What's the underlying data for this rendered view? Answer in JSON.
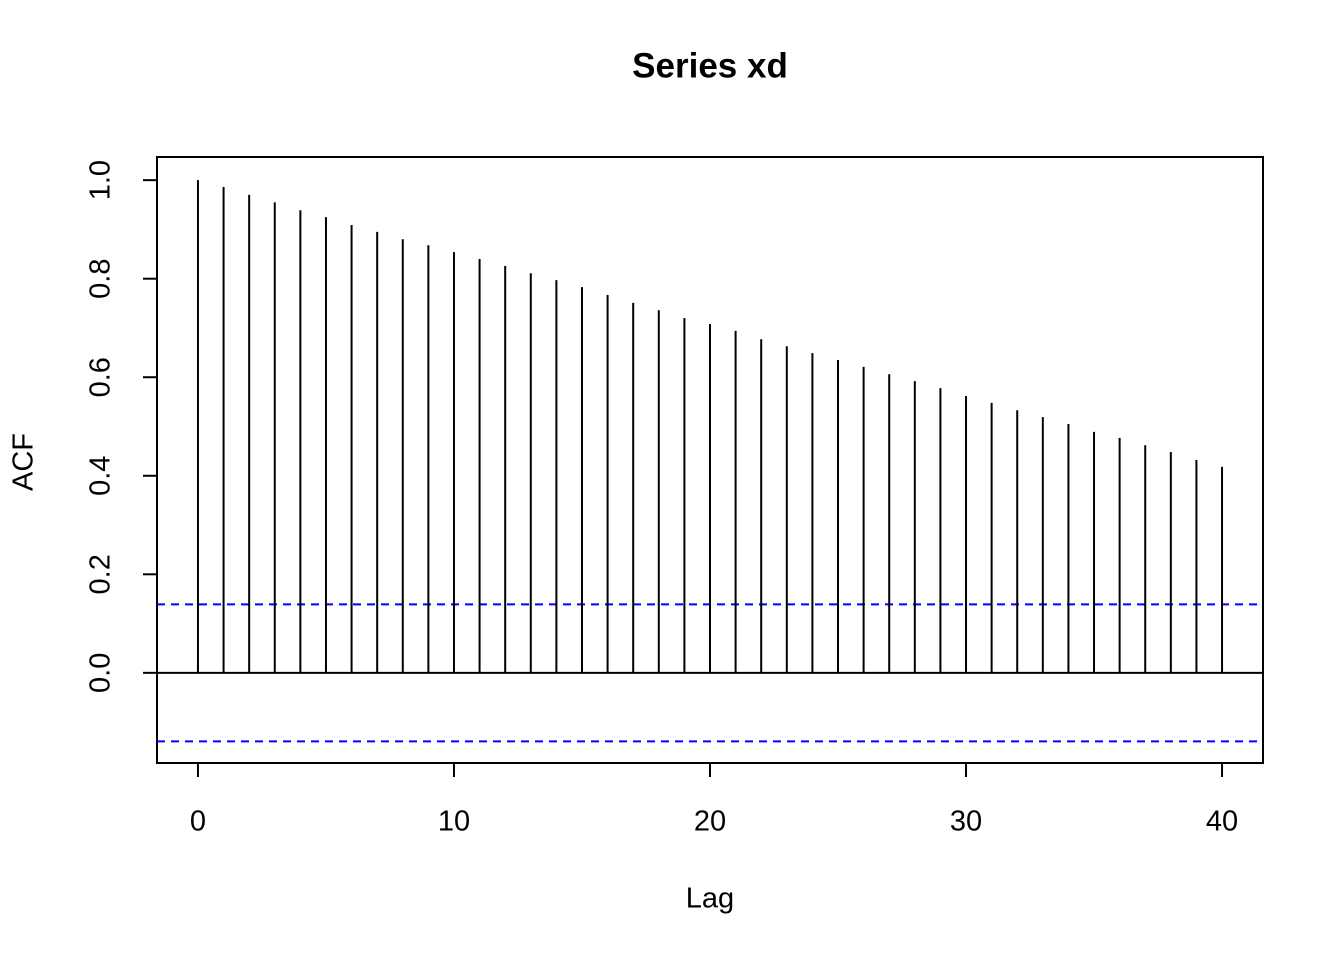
{
  "chart_data": {
    "type": "stem",
    "title": "Series  xd",
    "xlabel": "Lag",
    "ylabel": "ACF",
    "x": [
      0,
      1,
      2,
      3,
      4,
      5,
      6,
      7,
      8,
      9,
      10,
      11,
      12,
      13,
      14,
      15,
      16,
      17,
      18,
      19,
      20,
      21,
      22,
      23,
      24,
      25,
      26,
      27,
      28,
      29,
      30,
      31,
      32,
      33,
      34,
      35,
      36,
      37,
      38,
      39,
      40
    ],
    "values": [
      1.0,
      0.986,
      0.97,
      0.955,
      0.939,
      0.925,
      0.909,
      0.895,
      0.88,
      0.868,
      0.854,
      0.84,
      0.826,
      0.811,
      0.797,
      0.783,
      0.767,
      0.751,
      0.736,
      0.72,
      0.708,
      0.694,
      0.677,
      0.663,
      0.649,
      0.635,
      0.621,
      0.606,
      0.592,
      0.578,
      0.562,
      0.548,
      0.533,
      0.519,
      0.505,
      0.489,
      0.477,
      0.462,
      0.448,
      0.432,
      0.418
    ],
    "color": "#000000",
    "conf_limits": [
      -0.139,
      0.139
    ],
    "conf_color": "#0000ff",
    "xlim": [
      -1.6,
      41.6
    ],
    "ylim": [
      -0.183,
      1.047
    ],
    "xticks": [
      0,
      10,
      20,
      30,
      40
    ],
    "yticks": [
      {
        "value": 0,
        "label": "0.0"
      },
      0.2,
      0.4,
      0.6,
      0.8,
      {
        "value": 1,
        "label": "1.0"
      }
    ]
  }
}
